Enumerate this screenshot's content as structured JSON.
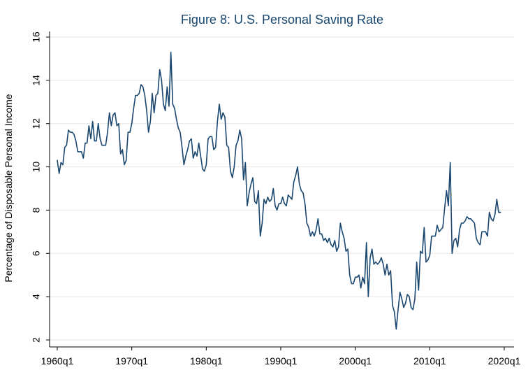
{
  "chart_data": {
    "type": "line",
    "title": "Figure 8: U.S. Personal Saving Rate",
    "xlabel": "",
    "ylabel": "Percentage of Disposable Personal Income",
    "x_tick_labels": [
      "1960q1",
      "1970q1",
      "1980q1",
      "1990q1",
      "2000q1",
      "2010q1",
      "2020q1"
    ],
    "x_ticks": [
      1960,
      1970,
      1980,
      1990,
      2000,
      2010,
      2020
    ],
    "xlim": [
      1960,
      2020
    ],
    "y_ticks": [
      2,
      4,
      6,
      8,
      10,
      12,
      14,
      16
    ],
    "y_tick_labels": [
      "2",
      "4",
      "6",
      "8",
      "10",
      "12",
      "14",
      "16"
    ],
    "ylim": [
      2,
      16
    ],
    "grid": true,
    "line_color": "#1a476f",
    "series": [
      {
        "points": [
          [
            1960.0,
            10.3
          ],
          [
            1960.25,
            9.7
          ],
          [
            1960.5,
            10.2
          ],
          [
            1960.75,
            10.1
          ],
          [
            1961.0,
            10.9
          ],
          [
            1961.25,
            11.0
          ],
          [
            1961.5,
            11.7
          ],
          [
            1961.75,
            11.6
          ],
          [
            1962.0,
            11.6
          ],
          [
            1962.25,
            11.5
          ],
          [
            1962.5,
            11.2
          ],
          [
            1962.75,
            10.7
          ],
          [
            1963.0,
            10.7
          ],
          [
            1963.25,
            10.7
          ],
          [
            1963.5,
            10.4
          ],
          [
            1963.75,
            11.1
          ],
          [
            1964.0,
            11.1
          ],
          [
            1964.25,
            11.9
          ],
          [
            1964.5,
            11.3
          ],
          [
            1964.75,
            12.1
          ],
          [
            1965.0,
            11.2
          ],
          [
            1965.25,
            11.2
          ],
          [
            1965.5,
            12.0
          ],
          [
            1965.75,
            11.3
          ],
          [
            1966.0,
            11.0
          ],
          [
            1966.25,
            11.0
          ],
          [
            1966.5,
            11.0
          ],
          [
            1966.75,
            11.6
          ],
          [
            1967.0,
            12.5
          ],
          [
            1967.25,
            11.9
          ],
          [
            1967.5,
            12.4
          ],
          [
            1967.75,
            12.5
          ],
          [
            1968.0,
            11.9
          ],
          [
            1968.25,
            12.0
          ],
          [
            1968.5,
            10.6
          ],
          [
            1968.75,
            10.8
          ],
          [
            1969.0,
            10.1
          ],
          [
            1969.25,
            10.3
          ],
          [
            1969.5,
            11.6
          ],
          [
            1969.75,
            11.6
          ],
          [
            1970.0,
            12.0
          ],
          [
            1970.25,
            12.7
          ],
          [
            1970.5,
            13.3
          ],
          [
            1970.75,
            13.3
          ],
          [
            1971.0,
            13.4
          ],
          [
            1971.25,
            13.8
          ],
          [
            1971.5,
            13.7
          ],
          [
            1971.75,
            13.3
          ],
          [
            1972.0,
            12.6
          ],
          [
            1972.25,
            11.6
          ],
          [
            1972.5,
            12.1
          ],
          [
            1972.75,
            13.4
          ],
          [
            1973.0,
            12.5
          ],
          [
            1973.25,
            13.3
          ],
          [
            1973.5,
            13.4
          ],
          [
            1973.75,
            14.5
          ],
          [
            1974.0,
            14.0
          ],
          [
            1974.25,
            12.9
          ],
          [
            1974.5,
            12.6
          ],
          [
            1974.75,
            13.7
          ],
          [
            1975.0,
            12.8
          ],
          [
            1975.25,
            15.3
          ],
          [
            1975.5,
            12.9
          ],
          [
            1975.75,
            12.7
          ],
          [
            1976.0,
            12.2
          ],
          [
            1976.25,
            11.8
          ],
          [
            1976.5,
            11.6
          ],
          [
            1976.75,
            10.9
          ],
          [
            1977.0,
            10.1
          ],
          [
            1977.25,
            10.5
          ],
          [
            1977.5,
            10.8
          ],
          [
            1977.75,
            11.2
          ],
          [
            1978.0,
            11.3
          ],
          [
            1978.25,
            10.4
          ],
          [
            1978.5,
            10.7
          ],
          [
            1978.75,
            10.5
          ],
          [
            1979.0,
            11.1
          ],
          [
            1979.25,
            10.5
          ],
          [
            1979.5,
            9.9
          ],
          [
            1979.75,
            9.8
          ],
          [
            1980.0,
            10.1
          ],
          [
            1980.25,
            11.3
          ],
          [
            1980.5,
            11.4
          ],
          [
            1980.75,
            11.4
          ],
          [
            1981.0,
            10.8
          ],
          [
            1981.25,
            10.9
          ],
          [
            1981.5,
            12.1
          ],
          [
            1981.75,
            12.9
          ],
          [
            1982.0,
            12.2
          ],
          [
            1982.25,
            12.5
          ],
          [
            1982.5,
            12.3
          ],
          [
            1982.75,
            11.0
          ],
          [
            1983.0,
            10.9
          ],
          [
            1983.25,
            9.8
          ],
          [
            1983.5,
            9.5
          ],
          [
            1983.75,
            10.0
          ],
          [
            1984.0,
            11.0
          ],
          [
            1984.25,
            11.2
          ],
          [
            1984.5,
            11.7
          ],
          [
            1984.75,
            11.3
          ],
          [
            1985.0,
            9.4
          ],
          [
            1985.25,
            10.2
          ],
          [
            1985.5,
            8.2
          ],
          [
            1985.75,
            8.8
          ],
          [
            1986.0,
            9.2
          ],
          [
            1986.25,
            9.5
          ],
          [
            1986.5,
            8.4
          ],
          [
            1986.75,
            8.3
          ],
          [
            1987.0,
            8.9
          ],
          [
            1987.25,
            6.8
          ],
          [
            1987.5,
            7.4
          ],
          [
            1987.75,
            8.5
          ],
          [
            1988.0,
            8.3
          ],
          [
            1988.25,
            8.6
          ],
          [
            1988.5,
            8.4
          ],
          [
            1988.75,
            8.5
          ],
          [
            1989.0,
            9.0
          ],
          [
            1989.25,
            8.2
          ],
          [
            1989.5,
            8.0
          ],
          [
            1989.75,
            8.3
          ],
          [
            1990.0,
            8.3
          ],
          [
            1990.25,
            8.6
          ],
          [
            1990.5,
            8.3
          ],
          [
            1990.75,
            8.2
          ],
          [
            1991.0,
            8.7
          ],
          [
            1991.25,
            8.6
          ],
          [
            1991.5,
            8.5
          ],
          [
            1991.75,
            9.3
          ],
          [
            1992.0,
            9.6
          ],
          [
            1992.25,
            10.0
          ],
          [
            1992.5,
            9.2
          ],
          [
            1992.75,
            8.9
          ],
          [
            1993.0,
            8.8
          ],
          [
            1993.25,
            8.3
          ],
          [
            1993.5,
            7.4
          ],
          [
            1993.75,
            7.2
          ],
          [
            1994.0,
            6.8
          ],
          [
            1994.25,
            7.0
          ],
          [
            1994.5,
            6.8
          ],
          [
            1994.75,
            7.1
          ],
          [
            1995.0,
            7.6
          ],
          [
            1995.25,
            6.9
          ],
          [
            1995.5,
            6.9
          ],
          [
            1995.75,
            6.6
          ],
          [
            1996.0,
            6.7
          ],
          [
            1996.25,
            6.5
          ],
          [
            1996.5,
            6.7
          ],
          [
            1996.75,
            6.4
          ],
          [
            1997.0,
            6.3
          ],
          [
            1997.25,
            6.6
          ],
          [
            1997.5,
            6.1
          ],
          [
            1997.75,
            6.3
          ],
          [
            1998.0,
            7.4
          ],
          [
            1998.25,
            7.0
          ],
          [
            1998.5,
            6.7
          ],
          [
            1998.75,
            6.1
          ],
          [
            1999.0,
            6.2
          ],
          [
            1999.25,
            5.0
          ],
          [
            1999.5,
            4.6
          ],
          [
            1999.75,
            4.6
          ],
          [
            2000.0,
            4.9
          ],
          [
            2000.25,
            4.9
          ],
          [
            2000.5,
            5.0
          ],
          [
            2000.75,
            4.4
          ],
          [
            2001.0,
            4.9
          ],
          [
            2001.25,
            4.6
          ],
          [
            2001.5,
            6.5
          ],
          [
            2001.75,
            4.0
          ],
          [
            2002.0,
            5.8
          ],
          [
            2002.25,
            6.2
          ],
          [
            2002.5,
            5.5
          ],
          [
            2002.75,
            5.6
          ],
          [
            2003.0,
            5.5
          ],
          [
            2003.25,
            5.6
          ],
          [
            2003.5,
            5.8
          ],
          [
            2003.75,
            5.5
          ],
          [
            2004.0,
            5.0
          ],
          [
            2004.25,
            5.5
          ],
          [
            2004.5,
            5.0
          ],
          [
            2004.75,
            5.2
          ],
          [
            2005.0,
            3.6
          ],
          [
            2005.25,
            3.3
          ],
          [
            2005.5,
            2.5
          ],
          [
            2005.75,
            3.4
          ],
          [
            2006.0,
            4.2
          ],
          [
            2006.25,
            3.9
          ],
          [
            2006.5,
            3.5
          ],
          [
            2006.75,
            3.7
          ],
          [
            2007.0,
            4.1
          ],
          [
            2007.25,
            4.0
          ],
          [
            2007.5,
            3.5
          ],
          [
            2007.75,
            3.4
          ],
          [
            2008.0,
            3.9
          ],
          [
            2008.25,
            5.6
          ],
          [
            2008.5,
            4.3
          ],
          [
            2008.75,
            6.1
          ],
          [
            2009.0,
            6.0
          ],
          [
            2009.25,
            7.2
          ],
          [
            2009.5,
            5.6
          ],
          [
            2009.75,
            5.7
          ],
          [
            2010.0,
            5.9
          ],
          [
            2010.25,
            6.8
          ],
          [
            2010.5,
            6.8
          ],
          [
            2010.75,
            6.8
          ],
          [
            2011.0,
            7.3
          ],
          [
            2011.25,
            7.0
          ],
          [
            2011.5,
            7.1
          ],
          [
            2011.75,
            7.2
          ],
          [
            2012.0,
            8.1
          ],
          [
            2012.25,
            8.9
          ],
          [
            2012.5,
            8.2
          ],
          [
            2012.75,
            10.2
          ],
          [
            2013.0,
            6.0
          ],
          [
            2013.25,
            6.6
          ],
          [
            2013.5,
            6.7
          ],
          [
            2013.75,
            6.3
          ],
          [
            2014.0,
            7.1
          ],
          [
            2014.25,
            7.4
          ],
          [
            2014.5,
            7.4
          ],
          [
            2014.75,
            7.5
          ],
          [
            2015.0,
            7.7
          ],
          [
            2015.25,
            7.6
          ],
          [
            2015.5,
            7.6
          ],
          [
            2015.75,
            7.5
          ],
          [
            2016.0,
            7.4
          ],
          [
            2016.25,
            6.7
          ],
          [
            2016.5,
            6.5
          ],
          [
            2016.75,
            6.4
          ],
          [
            2017.0,
            7.0
          ],
          [
            2017.25,
            7.0
          ],
          [
            2017.5,
            7.0
          ],
          [
            2017.75,
            6.8
          ],
          [
            2018.0,
            7.9
          ],
          [
            2018.25,
            7.6
          ],
          [
            2018.5,
            7.5
          ],
          [
            2018.75,
            7.8
          ],
          [
            2019.0,
            8.5
          ],
          [
            2019.25,
            7.9
          ],
          [
            2019.5,
            7.9
          ]
        ]
      }
    ]
  }
}
